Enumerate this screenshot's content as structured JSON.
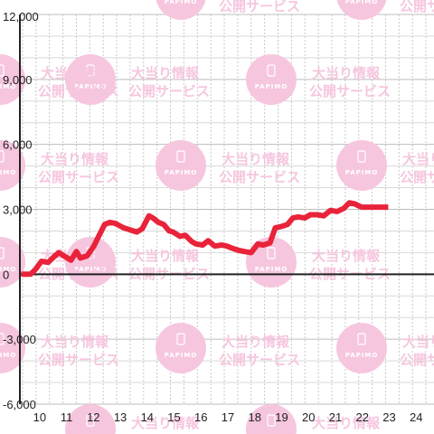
{
  "watermark": {
    "line1": "大当り情報",
    "line2": "公開サービス",
    "brand": "PAPIMO",
    "color": "#f6c6df"
  },
  "chart_data": {
    "type": "line",
    "title": "",
    "xlabel": "",
    "ylabel": "",
    "xlim": [
      9.4,
      24.8
    ],
    "ylim": [
      -6000,
      12000
    ],
    "x_ticks": [
      10,
      11,
      12,
      13,
      14,
      15,
      16,
      17,
      18,
      19,
      20,
      21,
      22,
      23,
      24
    ],
    "x_tick_labels": [
      "10",
      "11",
      "12",
      "13",
      "14",
      "15",
      "16",
      "17",
      "18",
      "19",
      "20",
      "21",
      "22",
      "23",
      "24"
    ],
    "y_ticks": [
      -6000,
      -3000,
      0,
      3000,
      6000,
      9000,
      12000
    ],
    "y_tick_labels": [
      "-6,000",
      "-3,000",
      "0",
      "3,000",
      "6,000",
      "9,000",
      "12,000"
    ],
    "grid": true,
    "line_color": "#e8233a",
    "series": [
      {
        "x": [
          9.45,
          9.8,
          10.0,
          10.2,
          10.45,
          10.7,
          10.85,
          11.1,
          11.3,
          11.5,
          11.65,
          11.9,
          12.15,
          12.35,
          12.55,
          12.75,
          12.95,
          13.25,
          13.5,
          13.75,
          13.95,
          14.2,
          14.35,
          14.55,
          14.75,
          14.95,
          15.1,
          15.35,
          15.55,
          15.8,
          15.95,
          16.2,
          16.4,
          16.65,
          16.9,
          17.1,
          17.3,
          17.55,
          17.75,
          18.0,
          18.25,
          18.45,
          18.7,
          18.9,
          19.1,
          19.35,
          19.55,
          19.75,
          20.0,
          20.2,
          20.45,
          20.7,
          20.95,
          21.2,
          21.45,
          21.65,
          21.85,
          22.1,
          22.35,
          22.55,
          22.7,
          22.9,
          23.1
        ],
        "y": [
          0,
          0,
          250,
          600,
          550,
          850,
          1000,
          800,
          650,
          1050,
          750,
          850,
          1300,
          1800,
          2300,
          2400,
          2350,
          2150,
          2050,
          1950,
          2100,
          2700,
          2600,
          2400,
          2300,
          2000,
          1950,
          1750,
          1800,
          1500,
          1400,
          1350,
          1550,
          1300,
          1350,
          1300,
          1200,
          1100,
          1050,
          1000,
          1400,
          1350,
          1450,
          2150,
          2200,
          2300,
          2600,
          2650,
          2600,
          2750,
          2750,
          2700,
          2950,
          2900,
          3050,
          3300,
          3250,
          3100,
          3100,
          3100,
          3100,
          3100,
          3100
        ]
      }
    ]
  }
}
